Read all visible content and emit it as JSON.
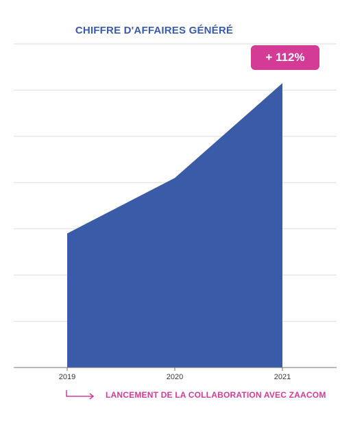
{
  "colors": {
    "title": "#3a5ba8",
    "area": "#3a5ba8",
    "grid": "#dedede",
    "axis": "#777777",
    "accent": "#d33b97"
  },
  "badge": {
    "text": "+ 112%"
  },
  "footer": {
    "text": "LANCEMENT DE LA COLLABORATION AVEC ZAACOM",
    "icon": "arrow-right-icon"
  },
  "chart_data": {
    "type": "area",
    "title": "CHIFFRE D'AFFAIRES GÉNÉRÉ",
    "categories": [
      "2019",
      "2020",
      "2021"
    ],
    "values": [
      2.9,
      4.1,
      6.15
    ],
    "ylim": [
      0,
      7
    ],
    "grid": true,
    "legend": "none"
  }
}
